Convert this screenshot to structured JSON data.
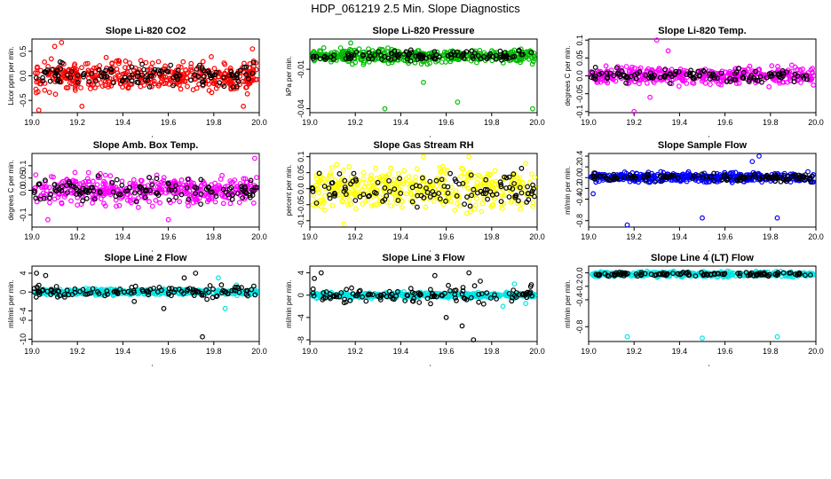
{
  "title": "HDP_061219  2.5 Min. Slope Diagnostics",
  "colors": {
    "black": "#000000",
    "red": "#ff0000",
    "green": "#00bb00",
    "magenta": "#ff00ff",
    "yellow": "#ffff00",
    "blue": "#0000ff",
    "cyan": "#00e5e5"
  },
  "chart_data": [
    {
      "type": "scatter",
      "title": "Slope Li-820 CO2",
      "xlabel": "",
      "ylabel": "Licor ppm per min.",
      "xlim": [
        19.0,
        20.0
      ],
      "ylim": [
        -0.75,
        0.75
      ],
      "xticks": [
        19.0,
        19.2,
        19.4,
        19.6,
        19.8,
        20.0
      ],
      "yticks": [
        -0.5,
        0.0,
        0.5
      ],
      "series": [
        {
          "name": "primary",
          "color": "#ff0000",
          "center": 0.0,
          "spread": 0.25,
          "outliers": [
            [
              19.03,
              -0.7
            ],
            [
              19.13,
              0.68
            ],
            [
              19.22,
              -0.62
            ],
            [
              19.93,
              -0.62
            ],
            [
              19.97,
              0.55
            ],
            [
              19.1,
              0.6
            ]
          ]
        },
        {
          "name": "secondary",
          "color": "#000000",
          "center": 0.0,
          "spread": 0.2,
          "outliers": []
        }
      ]
    },
    {
      "type": "scatter",
      "title": "Slope Li-820 Pressure",
      "xlabel": "",
      "ylabel": "kPa per min.",
      "xlim": [
        19.0,
        20.0
      ],
      "ylim": [
        -0.043,
        0.013
      ],
      "xticks": [
        19.0,
        19.2,
        19.4,
        19.6,
        19.8,
        20.0
      ],
      "yticks": [
        -0.04,
        -0.01
      ],
      "series": [
        {
          "name": "primary",
          "color": "#00bb00",
          "center": 0.0,
          "spread": 0.004,
          "outliers": [
            [
              19.18,
              0.01
            ],
            [
              19.33,
              -0.04
            ],
            [
              19.65,
              -0.035
            ],
            [
              19.98,
              -0.04
            ],
            [
              19.5,
              -0.02
            ]
          ]
        },
        {
          "name": "secondary",
          "color": "#000000",
          "center": 0.0,
          "spread": 0.003,
          "outliers": []
        }
      ]
    },
    {
      "type": "scatter",
      "title": "Slope Li-820 Temp.",
      "xlabel": "",
      "ylabel": "degrees C per min.",
      "xlim": [
        19.0,
        20.0
      ],
      "ylim": [
        -0.103,
        0.103
      ],
      "xticks": [
        19.0,
        19.2,
        19.4,
        19.6,
        19.8,
        20.0
      ],
      "yticks": [
        -0.1,
        -0.05,
        0.0,
        0.05,
        0.1
      ],
      "series": [
        {
          "name": "primary",
          "color": "#ff00ff",
          "center": 0.0,
          "spread": 0.02,
          "outliers": [
            [
              19.3,
              0.1
            ],
            [
              19.2,
              -0.1
            ],
            [
              19.35,
              0.07
            ],
            [
              19.27,
              -0.06
            ]
          ]
        },
        {
          "name": "secondary",
          "color": "#000000",
          "center": 0.0,
          "spread": 0.015,
          "outliers": []
        }
      ]
    },
    {
      "type": "scatter",
      "title": "Slope Amb. Box Temp.",
      "xlabel": "",
      "ylabel": "degrees C per min.",
      "xlim": [
        19.0,
        20.0
      ],
      "ylim": [
        -0.15,
        0.15
      ],
      "xticks": [
        19.0,
        19.2,
        19.4,
        19.6,
        19.8,
        20.0
      ],
      "yticks": [
        -0.1,
        0.0,
        0.05,
        0.1
      ],
      "series": [
        {
          "name": "primary",
          "color": "#ff00ff",
          "center": 0.0,
          "spread": 0.05,
          "outliers": [
            [
              19.98,
              0.13
            ],
            [
              19.07,
              -0.12
            ],
            [
              19.6,
              -0.12
            ]
          ]
        },
        {
          "name": "secondary",
          "color": "#000000",
          "center": 0.0,
          "spread": 0.04,
          "outliers": []
        }
      ]
    },
    {
      "type": "scatter",
      "title": "Slope Gas Stream RH",
      "xlabel": "",
      "ylabel": "percent per min.",
      "xlim": [
        19.0,
        20.0
      ],
      "ylim": [
        -0.12,
        0.11
      ],
      "xticks": [
        19.0,
        19.2,
        19.4,
        19.6,
        19.8,
        20.0
      ],
      "yticks": [
        -0.1,
        -0.05,
        0.0,
        0.05,
        0.1
      ],
      "series": [
        {
          "name": "primary",
          "color": "#ffff00",
          "center": 0.0,
          "spread": 0.05,
          "outliers": [
            [
              19.15,
              -0.11
            ],
            [
              19.5,
              0.1
            ],
            [
              19.7,
              0.1
            ]
          ]
        },
        {
          "name": "secondary",
          "color": "#000000",
          "center": 0.0,
          "spread": 0.04,
          "outliers": []
        }
      ]
    },
    {
      "type": "scatter",
      "title": "Slope Sample Flow",
      "xlabel": "",
      "ylabel": "ml/min per min.",
      "xlim": [
        19.0,
        20.0
      ],
      "ylim": [
        -0.92,
        0.45
      ],
      "xticks": [
        19.0,
        19.2,
        19.4,
        19.6,
        19.8,
        20.0
      ],
      "yticks": [
        -0.8,
        -0.4,
        -0.2,
        0.0,
        0.2,
        0.4
      ],
      "series": [
        {
          "name": "primary",
          "color": "#0000ff",
          "center": 0.0,
          "spread": 0.07,
          "outliers": [
            [
              19.17,
              -0.88
            ],
            [
              19.5,
              -0.75
            ],
            [
              19.83,
              -0.75
            ],
            [
              19.75,
              0.4
            ],
            [
              19.72,
              0.3
            ],
            [
              19.02,
              -0.3
            ]
          ]
        },
        {
          "name": "secondary",
          "color": "#000000",
          "center": 0.0,
          "spread": 0.06,
          "outliers": []
        }
      ]
    },
    {
      "type": "scatter",
      "title": "Slope Line 2 Flow",
      "xlabel": "",
      "ylabel": "ml/min per min.",
      "xlim": [
        19.0,
        20.0
      ],
      "ylim": [
        -10.5,
        5.5
      ],
      "xticks": [
        19.0,
        19.2,
        19.4,
        19.6,
        19.8,
        20.0
      ],
      "yticks": [
        -10,
        -6,
        -4,
        0,
        4
      ],
      "series": [
        {
          "name": "primary",
          "color": "#00e5e5",
          "center": 0.0,
          "spread": 0.5,
          "outliers": [
            [
              19.82,
              3.0
            ],
            [
              19.85,
              -3.5
            ],
            [
              19.9,
              1.5
            ]
          ]
        },
        {
          "name": "secondary",
          "color": "#000000",
          "center": 0.0,
          "spread": 1.0,
          "outliers": [
            [
              19.02,
              4.0
            ],
            [
              19.06,
              3.5
            ],
            [
              19.72,
              4.0
            ],
            [
              19.75,
              -9.5
            ],
            [
              19.58,
              -3.5
            ],
            [
              19.67,
              3.0
            ],
            [
              19.45,
              -2.0
            ]
          ]
        }
      ]
    },
    {
      "type": "scatter",
      "title": "Slope Line 3 Flow",
      "xlabel": "",
      "ylabel": "ml/min per min.",
      "xlim": [
        19.0,
        20.0
      ],
      "ylim": [
        -8.3,
        5.2
      ],
      "xticks": [
        19.0,
        19.2,
        19.4,
        19.6,
        19.8,
        20.0
      ],
      "yticks": [
        -8,
        -4,
        0,
        4
      ],
      "series": [
        {
          "name": "primary",
          "color": "#00e5e5",
          "center": 0.0,
          "spread": 0.4,
          "outliers": [
            [
              19.95,
              -1.5
            ],
            [
              19.9,
              2.0
            ],
            [
              19.85,
              -2.0
            ]
          ]
        },
        {
          "name": "secondary",
          "color": "#000000",
          "center": 0.0,
          "spread": 1.2,
          "outliers": [
            [
              19.02,
              3.0
            ],
            [
              19.05,
              4.0
            ],
            [
              19.55,
              3.5
            ],
            [
              19.72,
              -8.0
            ],
            [
              19.7,
              4.0
            ],
            [
              19.67,
              -5.5
            ],
            [
              19.6,
              -4.0
            ],
            [
              19.75,
              2.5
            ]
          ]
        }
      ]
    },
    {
      "type": "scatter",
      "title": "Slope Line 4 (LT) Flow",
      "xlabel": "",
      "ylabel": "ml/min per min.",
      "xlim": [
        19.0,
        20.0
      ],
      "ylim": [
        -1.02,
        0.1
      ],
      "xticks": [
        19.0,
        19.2,
        19.4,
        19.6,
        19.8,
        20.0
      ],
      "yticks": [
        -0.8,
        -0.4,
        -0.2,
        0.0
      ],
      "series": [
        {
          "name": "primary",
          "color": "#00e5e5",
          "center": -0.02,
          "spread": 0.03,
          "outliers": [
            [
              19.17,
              -0.95
            ],
            [
              19.5,
              -0.97
            ],
            [
              19.83,
              -0.95
            ]
          ]
        },
        {
          "name": "secondary",
          "color": "#000000",
          "center": -0.02,
          "spread": 0.02,
          "outliers": []
        }
      ]
    }
  ]
}
